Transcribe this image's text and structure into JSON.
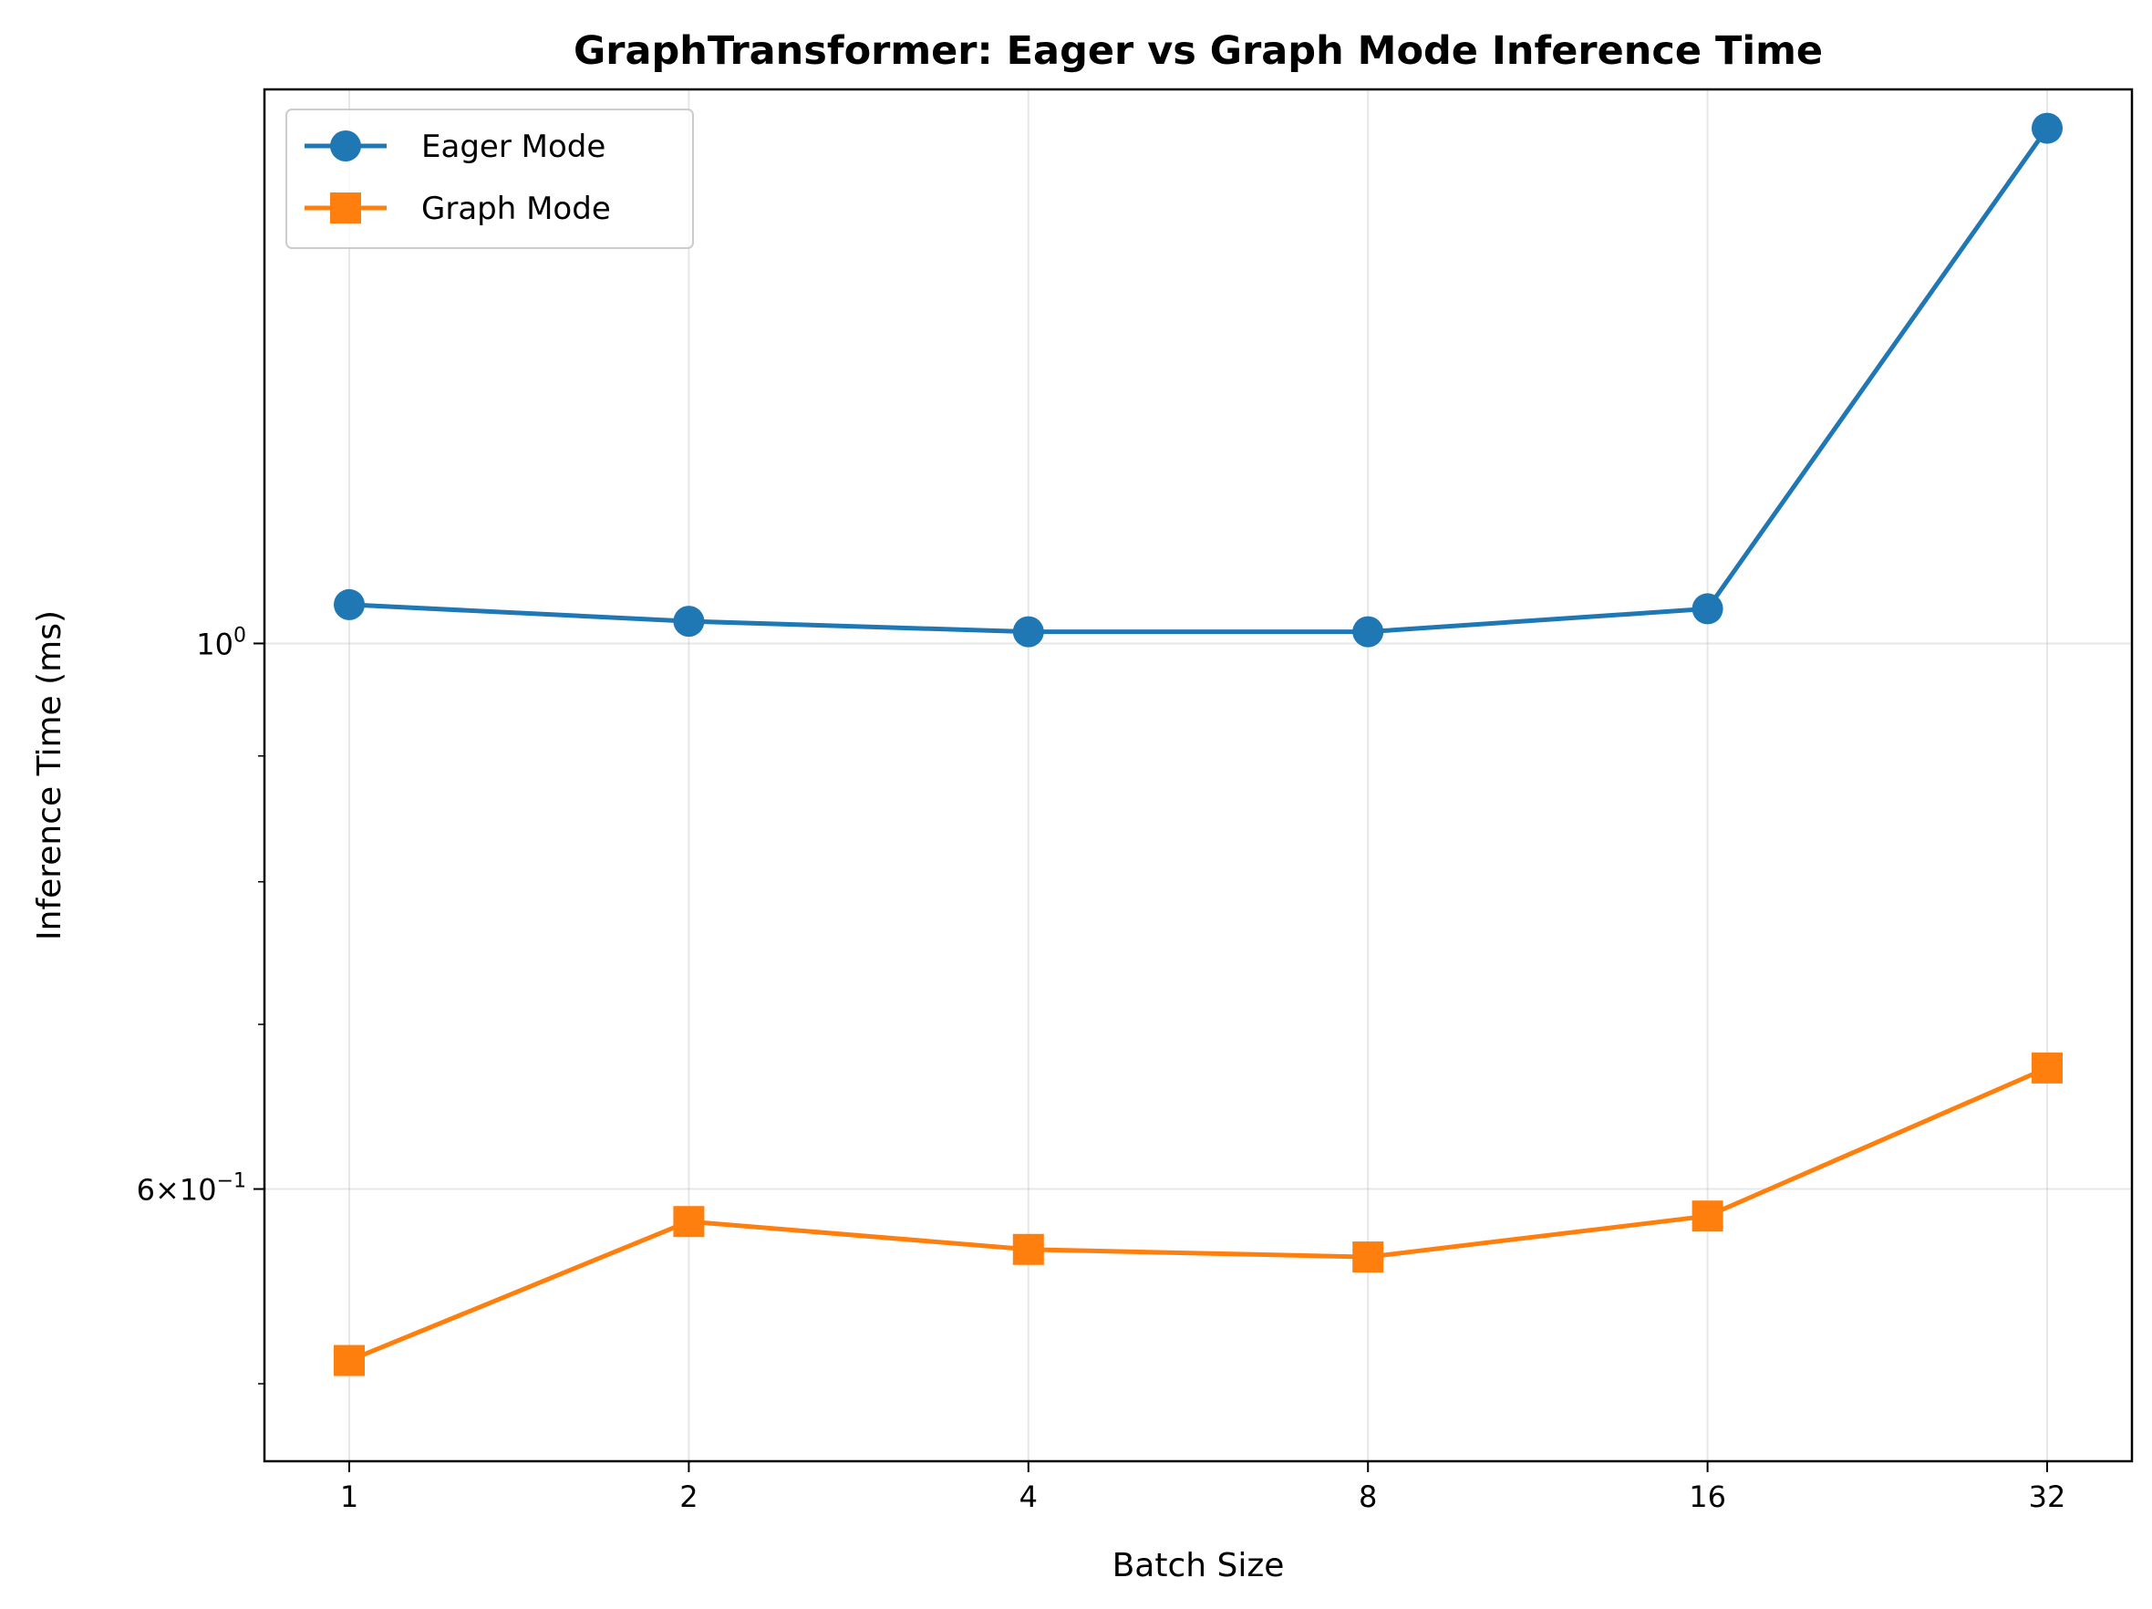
{
  "chart_data": {
    "type": "line",
    "title": "GraphTransformer: Eager vs Graph Mode Inference Time",
    "xlabel": "Batch Size",
    "ylabel": "Inference Time (ms)",
    "x": [
      1,
      2,
      4,
      8,
      16,
      32
    ],
    "x_tick_labels": [
      "1",
      "2",
      "4",
      "8",
      "16",
      "32"
    ],
    "x_scale": "log2",
    "y_scale": "log",
    "ylim": [
      0.465,
      1.68
    ],
    "y_tick_labels": [
      {
        "value": 1.0,
        "base": "10",
        "exp": "0"
      },
      {
        "value": 0.6,
        "prefix": "6×10",
        "exp": "−1"
      }
    ],
    "y_minor_ticks": [
      0.5,
      0.7,
      0.8,
      0.9
    ],
    "grid": true,
    "legend_position": "top-left",
    "series": [
      {
        "name": "Eager Mode",
        "color": "#1f77b4",
        "marker": "circle",
        "values": [
          1.037,
          1.021,
          1.011,
          1.011,
          1.033,
          1.62
        ]
      },
      {
        "name": "Graph Mode",
        "color": "#ff7f0e",
        "marker": "square",
        "values": [
          0.511,
          0.582,
          0.567,
          0.563,
          0.585,
          0.672
        ]
      }
    ]
  }
}
